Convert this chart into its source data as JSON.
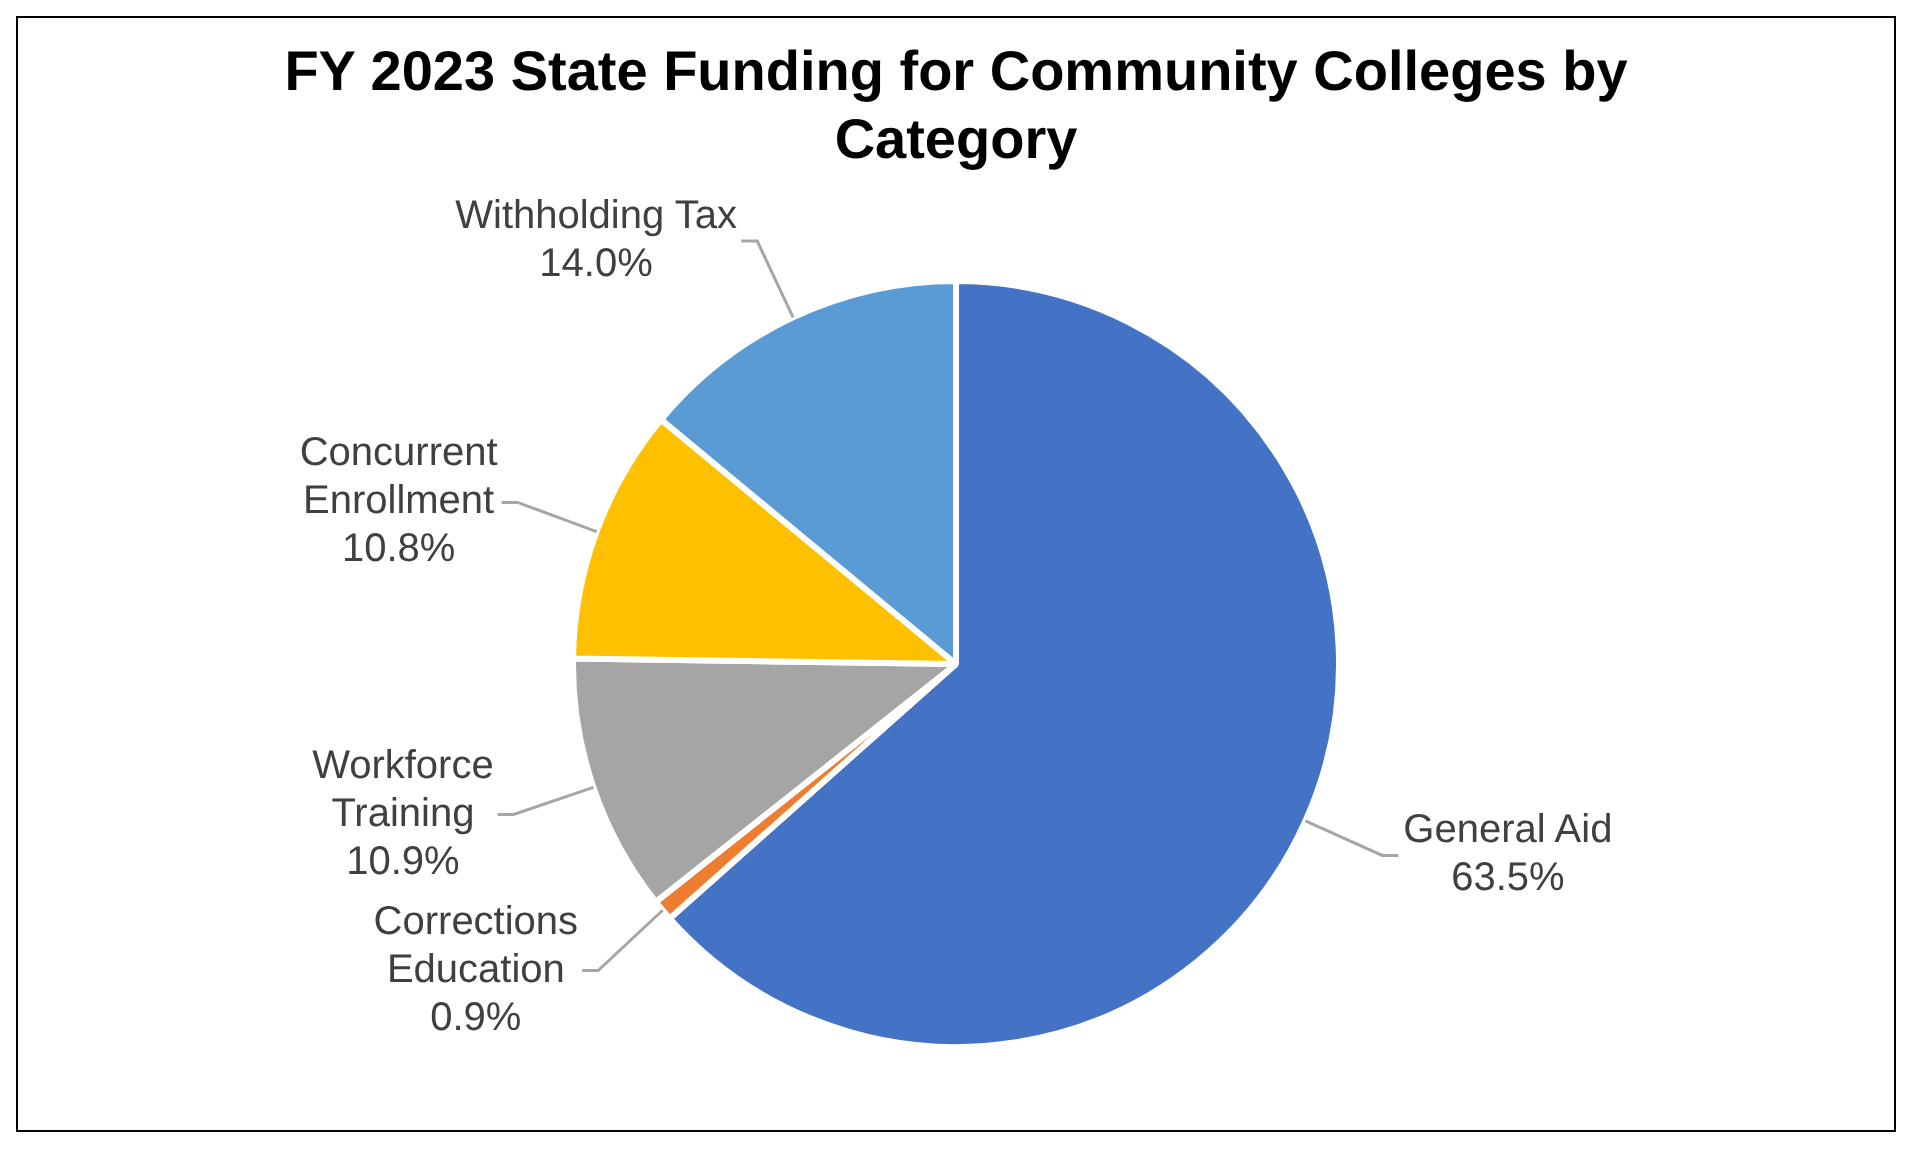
{
  "chart_data": {
    "type": "pie",
    "title": "FY 2023 State Funding for Community Colleges by Category",
    "categories": [
      "General Aid",
      "Corrections Education",
      "Workforce Training",
      "Concurrent Enrollment",
      "Withholding Tax"
    ],
    "values": [
      63.5,
      0.9,
      10.9,
      10.8,
      14.0
    ],
    "colors": [
      "#4472c4",
      "#ed7d31",
      "#a5a5a5",
      "#ffc000",
      "#5b9bd5"
    ],
    "value_labels": [
      "63.5%",
      "0.9%",
      "10.9%",
      "10.8%",
      "14.0%"
    ],
    "legend": false
  }
}
